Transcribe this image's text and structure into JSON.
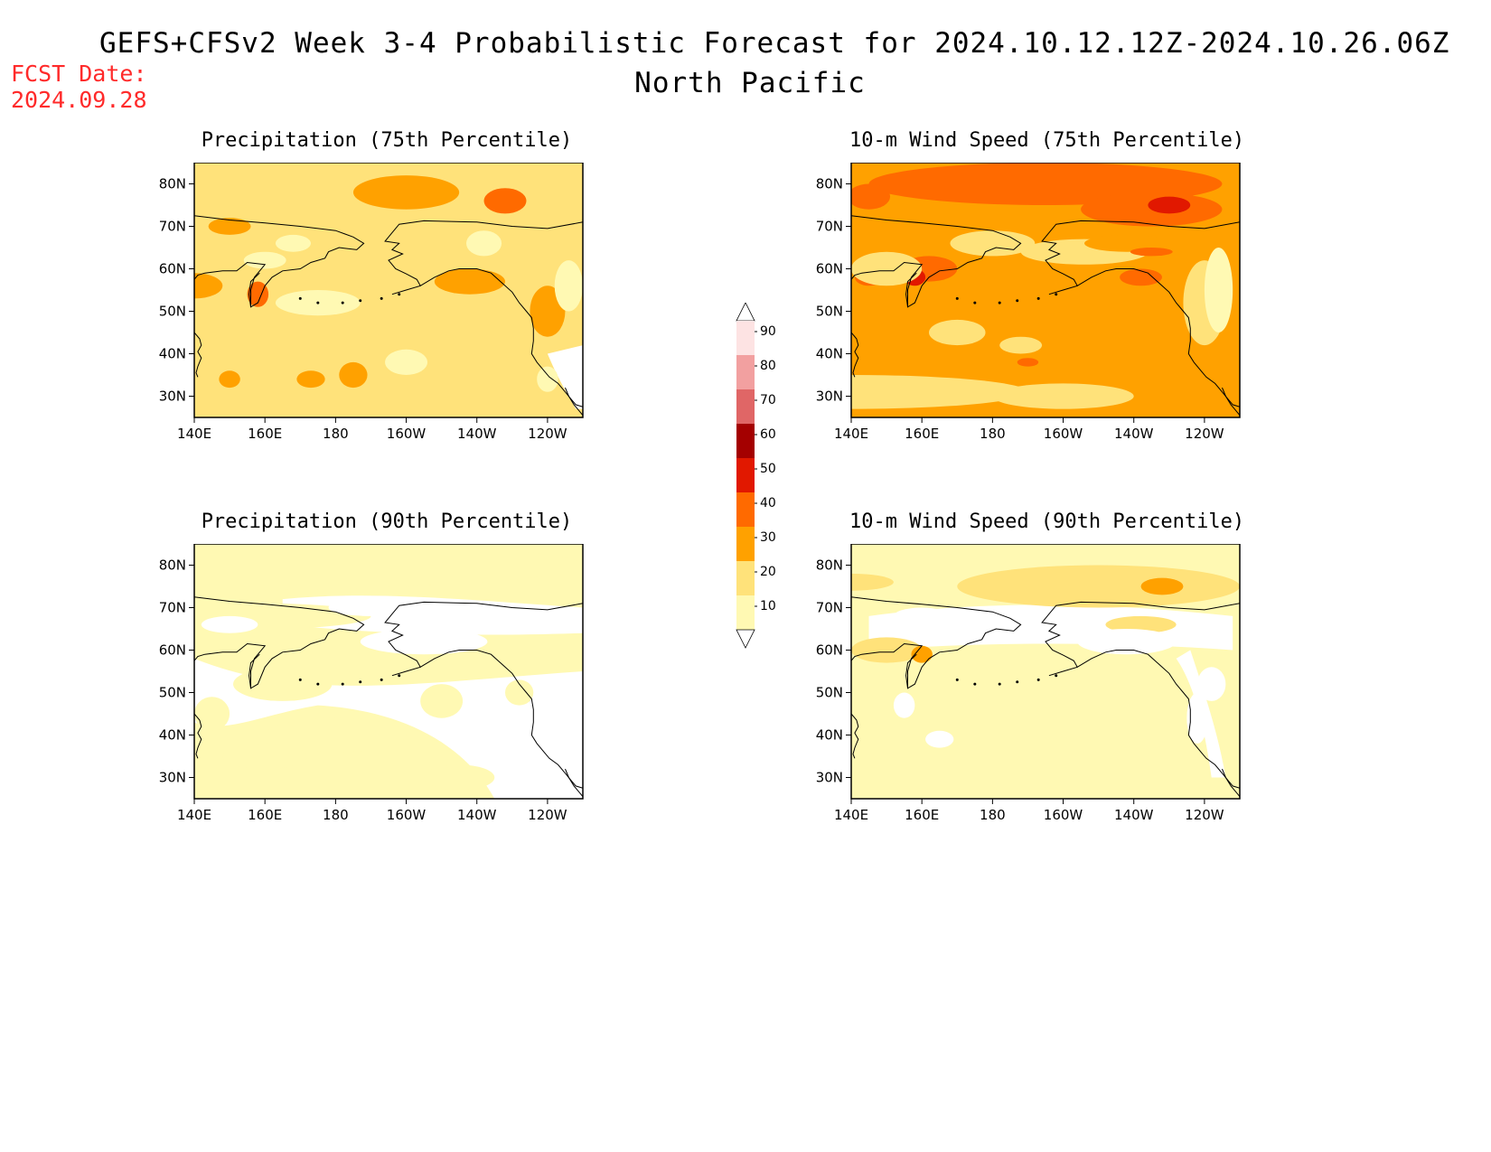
{
  "header": {
    "title": "GEFS+CFSv2 Week 3-4 Probabilistic Forecast for 2024.10.12.12Z-2024.10.26.06Z",
    "subtitle": "North Pacific",
    "fcst_label": "FCST Date:",
    "fcst_value": "2024.09.28"
  },
  "axes": {
    "lon_labels": [
      "140E",
      "160E",
      "180",
      "160W",
      "140W",
      "120W"
    ],
    "lat_labels": [
      "80N",
      "70N",
      "60N",
      "50N",
      "40N",
      "30N"
    ]
  },
  "panels": [
    {
      "id": "precip75",
      "title": "Precipitation (75th Percentile)",
      "base_level": 20
    },
    {
      "id": "wind75",
      "title": "10-m Wind Speed (75th Percentile)",
      "base_level": 30
    },
    {
      "id": "precip90",
      "title": "Precipitation (90th Percentile)",
      "base_level": 10
    },
    {
      "id": "wind90",
      "title": "10-m Wind Speed (90th Percentile)",
      "base_level": 10
    }
  ],
  "colorbar": {
    "labels": [
      "90",
      "80",
      "70",
      "60",
      "50",
      "40",
      "30",
      "20",
      "10"
    ],
    "colors": {
      "10": "#fff9b3",
      "20": "#ffe27a",
      "30": "#ffa100",
      "40": "#ff6a00",
      "50": "#e11800",
      "60": "#a40000",
      "70": "#e06666",
      "80": "#f2a0a0",
      "90": "#fde3e3"
    }
  }
}
